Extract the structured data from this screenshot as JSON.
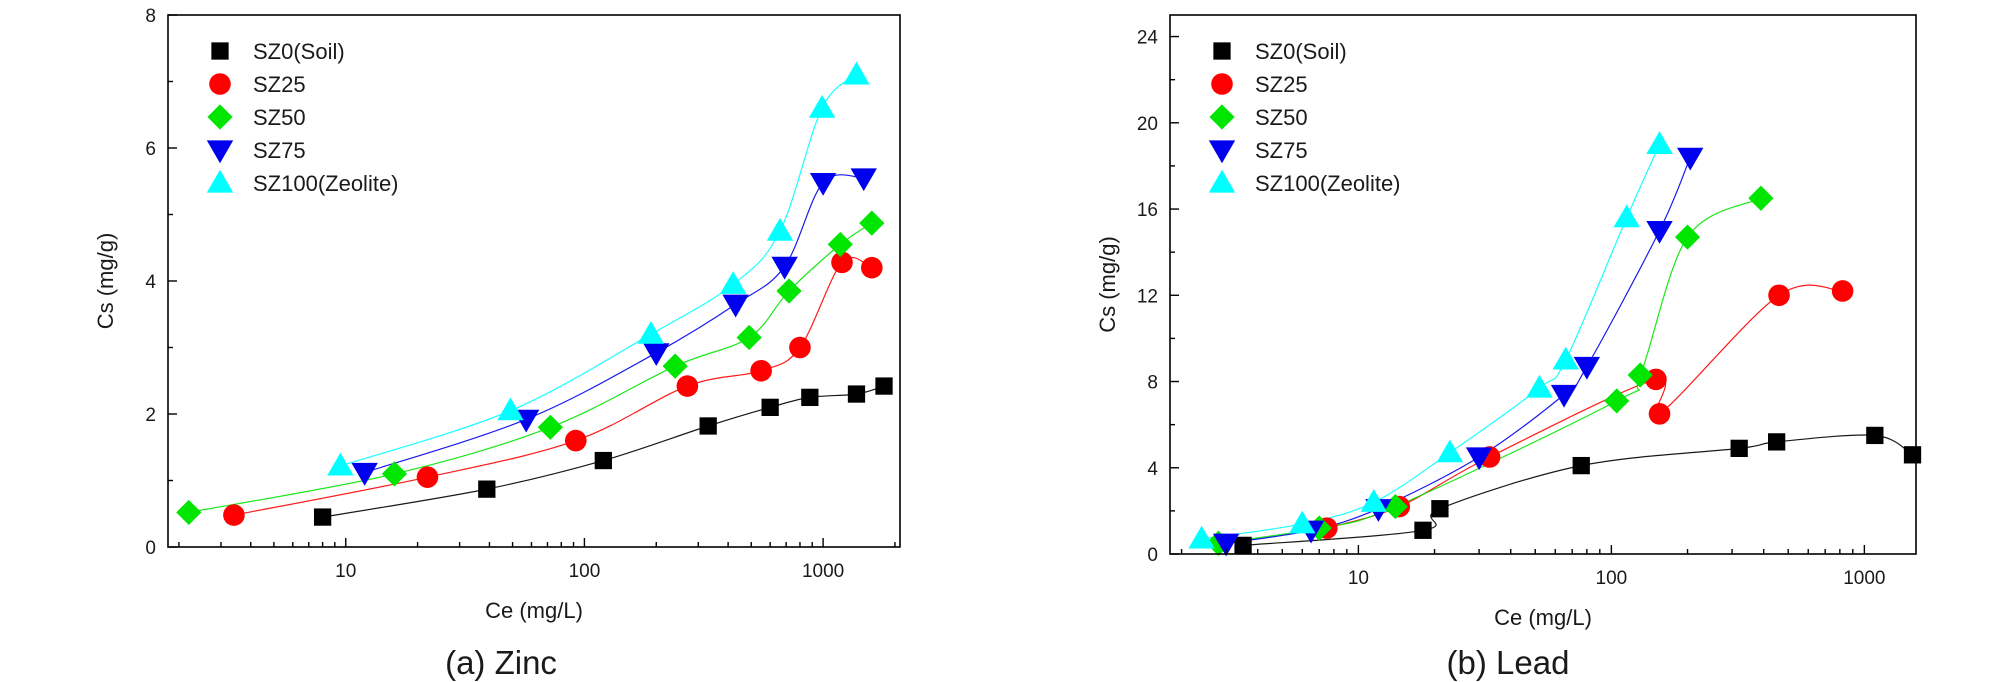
{
  "figures": [
    {
      "caption": "(a) Zinc"
    },
    {
      "caption": "(b) Lead"
    }
  ],
  "chart_data": [
    {
      "type": "scatter",
      "xscale": "log",
      "xlabel": "Ce (mg/L)",
      "ylabel": "Cs (mg/g)",
      "xlim": [
        1.8,
        2100
      ],
      "ylim": [
        0,
        8
      ],
      "xticks": [
        10,
        100,
        1000
      ],
      "xtick_labels": [
        "10",
        "100",
        "1000"
      ],
      "yticks": [
        0,
        2,
        4,
        6,
        8
      ],
      "ytick_labels": [
        "0",
        "2",
        "4",
        "6",
        "8"
      ],
      "grid": false,
      "legend_position": "top-left",
      "series": [
        {
          "name": "SZ0(Soil)",
          "marker": "square",
          "color": "#000000",
          "x": [
            8,
            39,
            120,
            330,
            600,
            880,
            1380,
            1800
          ],
          "y": [
            0.45,
            0.87,
            1.3,
            1.82,
            2.1,
            2.25,
            2.3,
            2.42
          ]
        },
        {
          "name": "SZ25",
          "marker": "circle",
          "color": "#ff0000",
          "x": [
            3.4,
            22,
            92,
            270,
            550,
            800,
            1200,
            1600
          ],
          "y": [
            0.48,
            1.05,
            1.6,
            2.42,
            2.65,
            3.0,
            4.28,
            4.2
          ]
        },
        {
          "name": "SZ50",
          "marker": "diamond",
          "color": "#00e600",
          "x": [
            2.2,
            16,
            72,
            240,
            490,
            720,
            1180,
            1600
          ],
          "y": [
            0.52,
            1.1,
            1.8,
            2.72,
            3.15,
            3.85,
            4.55,
            4.87
          ]
        },
        {
          "name": "SZ75",
          "marker": "triangle-down",
          "color": "#0000ee",
          "x": [
            12,
            57,
            200,
            430,
            690,
            1000,
            1480
          ],
          "y": [
            1.12,
            1.92,
            2.92,
            3.65,
            4.22,
            5.48,
            5.55
          ]
        },
        {
          "name": "SZ100(Zeolite)",
          "marker": "triangle-up",
          "color": "#00ffff",
          "x": [
            9.5,
            49,
            190,
            420,
            660,
            990,
            1380
          ],
          "y": [
            1.22,
            2.05,
            3.2,
            3.95,
            4.75,
            6.6,
            7.1
          ]
        }
      ]
    },
    {
      "type": "scatter",
      "xscale": "log",
      "xlabel": "Ce (mg/L)",
      "ylabel": "Cs (mg/g)",
      "xlim": [
        1.8,
        1600
      ],
      "ylim": [
        0,
        25
      ],
      "xticks": [
        10,
        100,
        1000
      ],
      "xtick_labels": [
        "10",
        "100",
        "1000"
      ],
      "yticks": [
        0,
        4,
        8,
        12,
        16,
        20,
        24
      ],
      "ytick_labels": [
        "0",
        "4",
        "8",
        "12",
        "16",
        "20",
        "24"
      ],
      "grid": false,
      "legend_position": "top-left",
      "series": [
        {
          "name": "SZ0(Soil)",
          "marker": "square",
          "color": "#000000",
          "x": [
            3.5,
            18,
            21,
            76,
            320,
            450,
            1100,
            1550
          ],
          "y": [
            0.4,
            1.1,
            2.1,
            4.1,
            4.9,
            5.2,
            5.5,
            4.6
          ]
        },
        {
          "name": "SZ25",
          "marker": "circle",
          "color": "#ff0000",
          "x": [
            7.5,
            14.5,
            33,
            150,
            155,
            460,
            820
          ],
          "y": [
            1.2,
            2.2,
            4.5,
            8.1,
            6.5,
            12.0,
            12.2
          ]
        },
        {
          "name": "SZ50",
          "marker": "diamond",
          "color": "#00e600",
          "x": [
            2.8,
            7,
            14,
            105,
            130,
            200,
            390
          ],
          "y": [
            0.5,
            1.2,
            2.2,
            7.1,
            8.3,
            14.7,
            16.5
          ]
        },
        {
          "name": "SZ75",
          "marker": "triangle-down",
          "color": "#0000ee",
          "x": [
            3,
            6.5,
            12,
            30,
            65,
            80,
            155,
            205
          ],
          "y": [
            0.5,
            1.1,
            2.1,
            4.5,
            7.4,
            8.7,
            15.0,
            18.4
          ]
        },
        {
          "name": "SZ100(Zeolite)",
          "marker": "triangle-up",
          "color": "#00ffff",
          "x": [
            2.4,
            6,
            11.5,
            23,
            52,
            66,
            115,
            155
          ],
          "y": [
            0.7,
            1.4,
            2.4,
            4.7,
            7.7,
            9.0,
            15.6,
            19.0
          ]
        }
      ]
    }
  ]
}
